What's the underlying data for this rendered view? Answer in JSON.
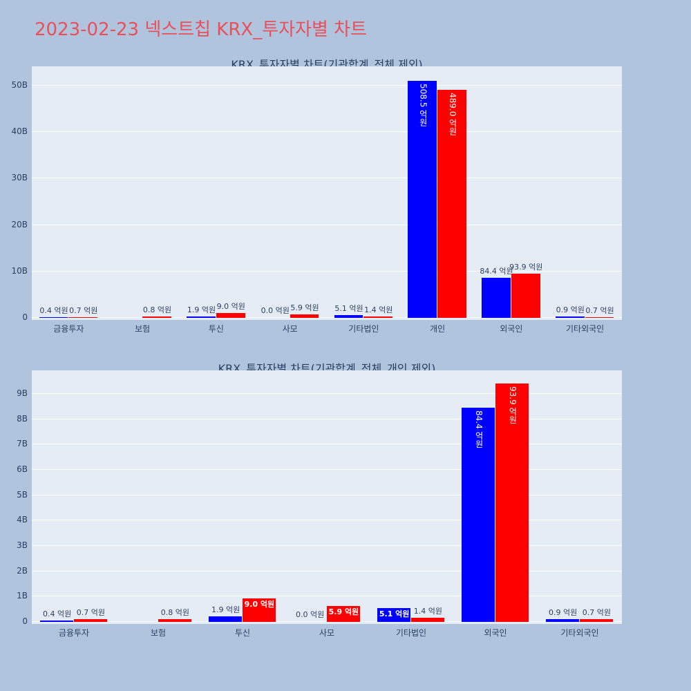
{
  "main_title": "2023-02-23 넥스트칩 KRX_투자자별 차트",
  "colors": {
    "buy": "#0000ff",
    "sell": "#ff0000",
    "title": "#e8505b"
  },
  "chart_data": [
    {
      "type": "bar",
      "title": "KRX_투자자별 차트(기관합계_전체 제외)",
      "categories": [
        "금융투자",
        "보험",
        "투신",
        "사모",
        "기타법인",
        "개인",
        "외국인",
        "기타외국인"
      ],
      "ylim": [
        0,
        54000000000
      ],
      "y_ticks": [
        0,
        10000000000,
        20000000000,
        30000000000,
        40000000000,
        50000000000
      ],
      "y_tick_labels": [
        "0",
        "10B",
        "20B",
        "30B",
        "40B",
        "50B"
      ],
      "series": [
        {
          "color": "#0000ff",
          "values": [
            40000000,
            0,
            190000000,
            0,
            510000000,
            50850000000,
            8440000000,
            90000000
          ],
          "labels": [
            "0.4 억원",
            "",
            "1.9 억원",
            "0.0 억원",
            "5.1 억원",
            "508.5 억원",
            "84.4 억원",
            "0.9 억원"
          ]
        },
        {
          "color": "#ff0000",
          "values": [
            70000000,
            80000000,
            900000000,
            590000000,
            140000000,
            48900000000,
            9390000000,
            70000000
          ],
          "labels": [
            "0.7 억원",
            "0.8 억원",
            "9.0 억원",
            "5.9 억원",
            "1.4 억원",
            "489.0 억원",
            "93.9 억원",
            "0.7 억원"
          ]
        }
      ]
    },
    {
      "type": "bar",
      "title": "KRX_투자자별 차트(기관합계_전체_개인 제외)",
      "categories": [
        "금융투자",
        "보험",
        "투신",
        "사모",
        "기타법인",
        "외국인",
        "기타외국인"
      ],
      "ylim": [
        0,
        9900000000
      ],
      "y_ticks": [
        0,
        1000000000,
        2000000000,
        3000000000,
        4000000000,
        5000000000,
        6000000000,
        7000000000,
        8000000000,
        9000000000
      ],
      "y_tick_labels": [
        "0",
        "1B",
        "2B",
        "3B",
        "4B",
        "5B",
        "6B",
        "7B",
        "8B",
        "9B"
      ],
      "series": [
        {
          "color": "#0000ff",
          "values": [
            40000000,
            0,
            190000000,
            0,
            510000000,
            8440000000,
            90000000
          ],
          "labels": [
            "0.4 억원",
            "",
            "1.9 억원",
            "0.0 억원",
            "5.1 억원",
            "84.4 억원",
            "0.9 억원"
          ]
        },
        {
          "color": "#ff0000",
          "values": [
            70000000,
            80000000,
            900000000,
            590000000,
            140000000,
            9390000000,
            70000000
          ],
          "labels": [
            "0.7 억원",
            "0.8 억원",
            "9.0 억원",
            "5.9 억원",
            "1.4 억원",
            "93.9 억원",
            "0.7 억원"
          ]
        }
      ]
    }
  ]
}
